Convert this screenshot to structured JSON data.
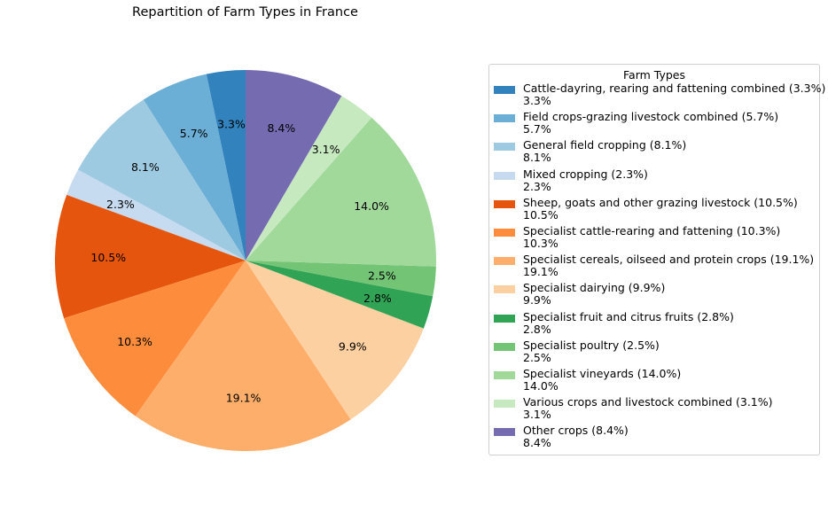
{
  "chart_data": {
    "type": "pie",
    "title": "Repartition of Farm Types in France",
    "legend_title": "Farm Types",
    "legend_position": "right",
    "start": "top",
    "direction": "counterclockwise",
    "slices": [
      {
        "label": "Cattle-dayring, rearing and fattening combined (3.3%)",
        "value": 3.3,
        "pct_label": "3.3%",
        "color": "#3182bd"
      },
      {
        "label": "Field crops-grazing livestock combined (5.7%)",
        "value": 5.7,
        "pct_label": "5.7%",
        "color": "#6baed6"
      },
      {
        "label": "General field cropping (8.1%)",
        "value": 8.1,
        "pct_label": "8.1%",
        "color": "#9ecae1"
      },
      {
        "label": "Mixed cropping (2.3%)",
        "value": 2.3,
        "pct_label": "2.3%",
        "color": "#c6dbef"
      },
      {
        "label": "Sheep, goats and other grazing livestock (10.5%)",
        "value": 10.5,
        "pct_label": "10.5%",
        "color": "#e6550d"
      },
      {
        "label": "Specialist cattle-rearing and fattening (10.3%)",
        "value": 10.3,
        "pct_label": "10.3%",
        "color": "#fd8d3c"
      },
      {
        "label": "Specialist cereals, oilseed and protein crops (19.1%)",
        "value": 19.1,
        "pct_label": "19.1%",
        "color": "#fdae6b"
      },
      {
        "label": "Specialist dairying (9.9%)",
        "value": 9.9,
        "pct_label": "9.9%",
        "color": "#fdd0a2"
      },
      {
        "label": "Specialist fruit and citrus fruits (2.8%)",
        "value": 2.8,
        "pct_label": "2.8%",
        "color": "#31a354"
      },
      {
        "label": "Specialist poultry (2.5%)",
        "value": 2.5,
        "pct_label": "2.5%",
        "color": "#74c476"
      },
      {
        "label": "Specialist vineyards (14.0%)",
        "value": 14.0,
        "pct_label": "14.0%",
        "color": "#a1d99b"
      },
      {
        "label": "Various crops and livestock combined (3.1%)",
        "value": 3.1,
        "pct_label": "3.1%",
        "color": "#c7e9c0"
      },
      {
        "label": "Other crops (8.4%)",
        "value": 8.4,
        "pct_label": "8.4%",
        "color": "#756bb1"
      }
    ]
  }
}
